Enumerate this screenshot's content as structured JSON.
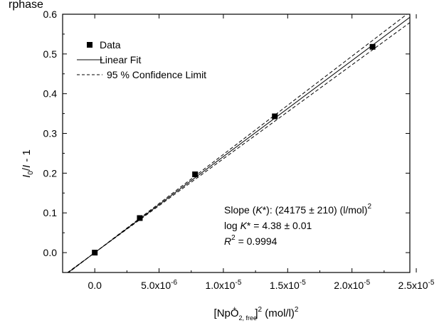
{
  "caption_fragment": "rphase",
  "chart_data": {
    "type": "scatter",
    "x_tick_labels": [
      "0.0",
      "5.0x10-6",
      "1.0x10-5",
      "1.5x10-5",
      "2.0x10-5",
      "2.5x10-5"
    ],
    "y_tick_labels": [
      "0.0",
      "0.1",
      "0.2",
      "0.3",
      "0.4",
      "0.5",
      "0.6"
    ],
    "xlim": [
      -2.5e-06,
      2.45e-05
    ],
    "ylim": [
      -0.05,
      0.6
    ],
    "x_ticks": [
      0,
      5e-06,
      1e-05,
      1.5e-05,
      2e-05,
      2.5e-05
    ],
    "y_ticks": [
      0,
      0.1,
      0.2,
      0.3,
      0.4,
      0.5,
      0.6
    ],
    "grid": false,
    "legend_position": "top-left",
    "series": [
      {
        "name": "Data",
        "kind": "markers",
        "x": [
          0,
          3.5e-06,
          7.8e-06,
          1.4e-05,
          2.16e-05
        ],
        "y": [
          0.0,
          0.087,
          0.197,
          0.343,
          0.518
        ]
      },
      {
        "name": "Linear Fit",
        "kind": "line",
        "slope": 24175,
        "intercept": 0.0
      },
      {
        "name": "95 % Confidence Limit",
        "kind": "dashed",
        "upper": {
          "slope": 24720,
          "intercept": 0.0
        },
        "lower": {
          "slope": 23630,
          "intercept": 0.0
        }
      }
    ],
    "xlabel": {
      "main": "[NpO",
      "sub": "2, free",
      "sup": "+",
      "close": "]",
      "exp": "2",
      "unit_text": " (mol/l)",
      "unit_exp": "2"
    },
    "ylabel": {
      "i1": "I",
      "sub": "0",
      "slash": "/",
      "i2": "I",
      "rest": " - 1"
    },
    "annotation": {
      "line1_a": "Slope (",
      "line1_k": "K",
      "line1_b": "*): (24175 ± 210) (l/mol)",
      "line1_exp": "2",
      "line2_a": "log ",
      "line2_k": "K",
      "line2_b": "* = 4.38 ± 0.01",
      "line3_r": "R",
      "line3_exp": "2",
      "line3_b": " = 0.9994"
    }
  }
}
